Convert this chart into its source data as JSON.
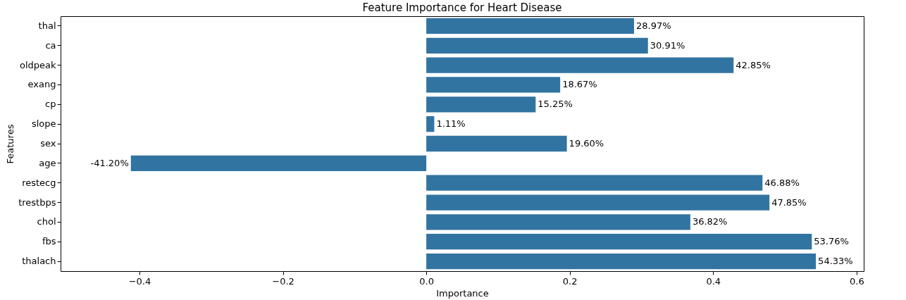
{
  "chart_data": {
    "type": "bar",
    "orientation": "horizontal",
    "title": "Feature Importance for Heart Disease",
    "xlabel": "Importance",
    "ylabel": "Features",
    "categories": [
      "thal",
      "ca",
      "oldpeak",
      "exang",
      "cp",
      "slope",
      "sex",
      "age",
      "restecg",
      "trestbps",
      "chol",
      "fbs",
      "thalach"
    ],
    "values": [
      0.2897,
      0.3091,
      0.4285,
      0.1867,
      0.1525,
      0.0111,
      0.196,
      -0.412,
      0.4688,
      0.4785,
      0.3682,
      0.5376,
      0.5433
    ],
    "value_labels": [
      "28.97%",
      "30.91%",
      "42.85%",
      "18.67%",
      "15.25%",
      "1.11%",
      "19.60%",
      "-41.20%",
      "46.88%",
      "47.85%",
      "36.82%",
      "53.76%",
      "54.33%"
    ],
    "color": "#3274a1",
    "xlim": [
      -0.51,
      0.61
    ],
    "xticks": [
      {
        "value": -0.4,
        "label": "−0.4"
      },
      {
        "value": -0.2,
        "label": "−0.2"
      },
      {
        "value": 0,
        "label": "0.0"
      },
      {
        "value": 0.2,
        "label": "0.2"
      },
      {
        "value": 0.4,
        "label": "0.4"
      },
      {
        "value": 0.6,
        "label": "0.6"
      }
    ],
    "grid": false
  }
}
